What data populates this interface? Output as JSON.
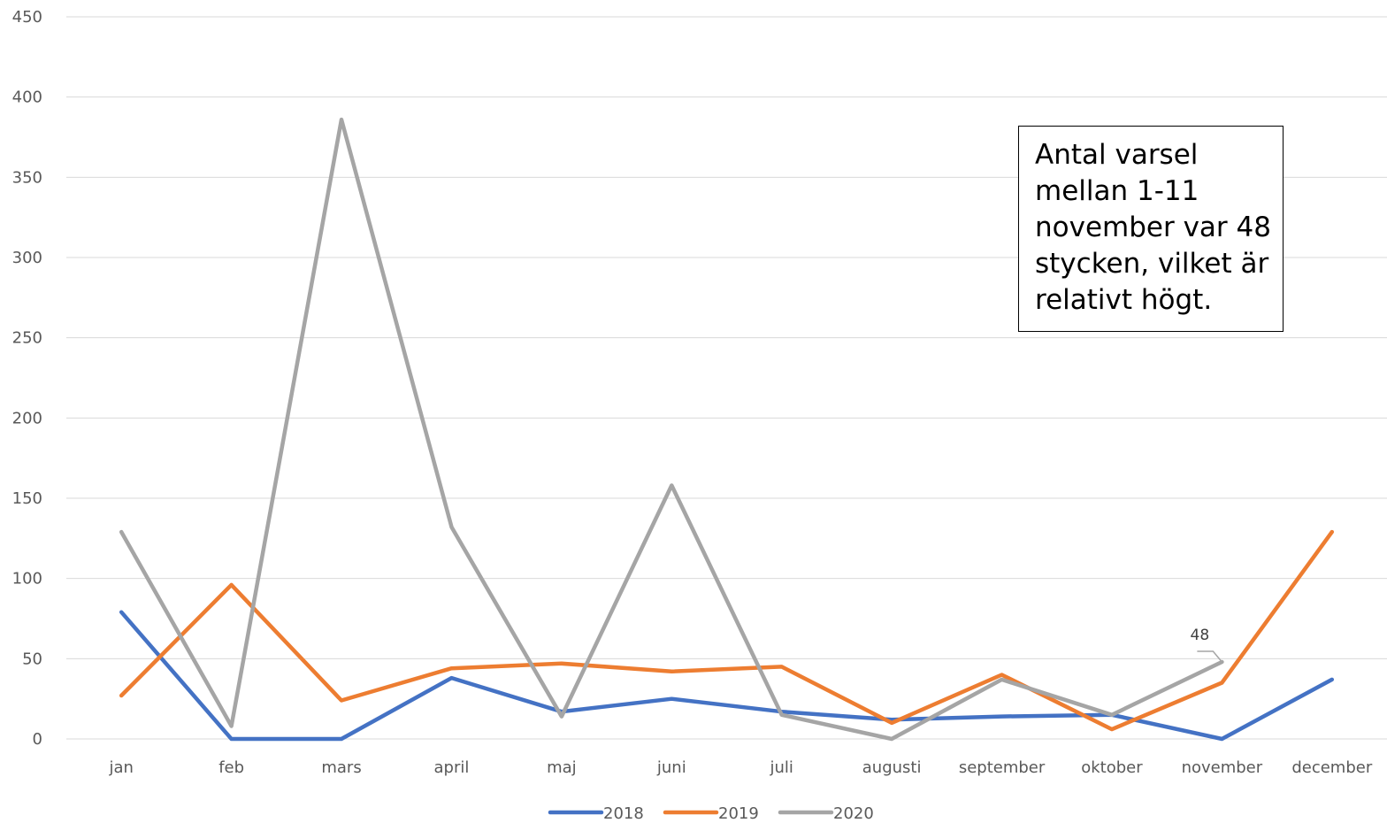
{
  "chart_data": {
    "type": "line",
    "categories": [
      "jan",
      "feb",
      "mars",
      "april",
      "maj",
      "juni",
      "juli",
      "augusti",
      "september",
      "oktober",
      "november",
      "december"
    ],
    "ylim": [
      0,
      450
    ],
    "yticks": [
      0,
      50,
      100,
      150,
      200,
      250,
      300,
      350,
      400,
      450
    ],
    "grid": true,
    "legend_position": "bottom",
    "series": [
      {
        "name": "2018",
        "color": "#4472c4",
        "values": [
          79,
          0,
          0,
          38,
          17,
          25,
          17,
          12,
          14,
          15,
          0,
          37
        ]
      },
      {
        "name": "2019",
        "color": "#ed7d31",
        "values": [
          27,
          96,
          24,
          44,
          47,
          42,
          45,
          10,
          40,
          6,
          35,
          129
        ]
      },
      {
        "name": "2020",
        "color": "#a5a5a5",
        "values": [
          129,
          8,
          386,
          132,
          14,
          158,
          15,
          0,
          37,
          15,
          48,
          null
        ]
      }
    ],
    "data_labels": [
      {
        "series": "2020",
        "category": "november",
        "text": "48"
      }
    ],
    "annotation": "Antal varsel mellan 1-11 november var 48 stycken, vilket är relativt högt."
  }
}
